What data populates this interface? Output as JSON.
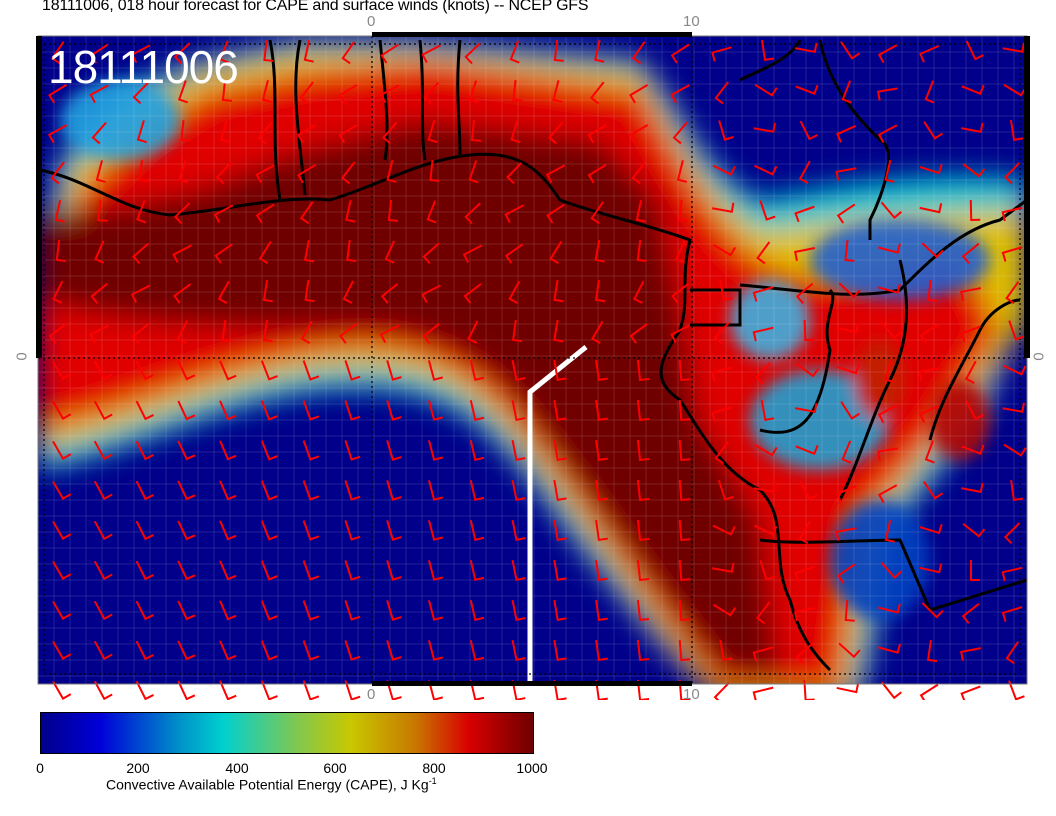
{
  "title": "18111006, 018 hour forecast for CAPE and surface winds (knots) -- NCEP GFS",
  "stamp": "18111006",
  "axes": {
    "top_ticks": [
      "0",
      "10"
    ],
    "bottom_ticks": [
      "0",
      "10"
    ],
    "left_tick": "0",
    "right_tick": "0"
  },
  "colors": {
    "wind_barbs": "#ff0000",
    "coastlines": "#000000",
    "section_line": "#ffffff",
    "ocean_low": "#00008a",
    "high": "#700000"
  },
  "colorbar": {
    "ticks": [
      "0",
      "200",
      "400",
      "600",
      "800",
      "1000"
    ],
    "range": [
      0,
      1000
    ],
    "label": "Convective Available Potential Energy (CAPE), J Kg",
    "label_sup": "-1",
    "colormap": "jet"
  }
}
